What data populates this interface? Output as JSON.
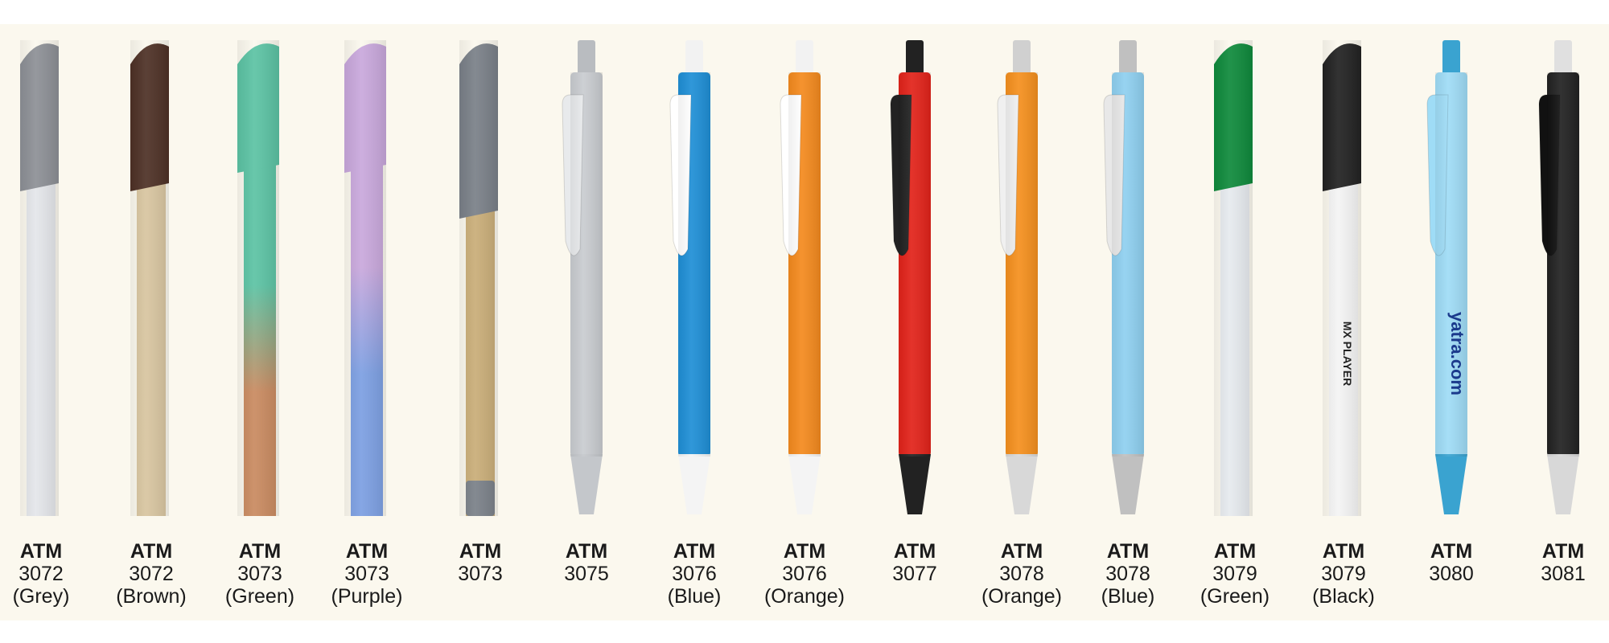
{
  "items": [
    {
      "brand": "ATM",
      "code": "3072",
      "variant": "(Grey)"
    },
    {
      "brand": "ATM",
      "code": "3072",
      "variant": "(Brown)"
    },
    {
      "brand": "ATM",
      "code": "3073",
      "variant": "(Green)"
    },
    {
      "brand": "ATM",
      "code": "3073",
      "variant": "(Purple)"
    },
    {
      "brand": "ATM",
      "code": "3073"
    },
    {
      "brand": "ATM",
      "code": "3075"
    },
    {
      "brand": "ATM",
      "code": "3076",
      "variant": "(Blue)"
    },
    {
      "brand": "ATM",
      "code": "3076",
      "variant": "(Orange)"
    },
    {
      "brand": "ATM",
      "code": "3077"
    },
    {
      "brand": "ATM",
      "code": "3078",
      "variant": "(Orange)"
    },
    {
      "brand": "ATM",
      "code": "3078",
      "variant": "(Blue)"
    },
    {
      "brand": "ATM",
      "code": "3079",
      "variant": "(Green)"
    },
    {
      "brand": "ATM",
      "code": "3079",
      "variant": "(Black)",
      "logo": "MX PLAYER"
    },
    {
      "brand": "ATM",
      "code": "3080",
      "logo": "yatra.com"
    },
    {
      "brand": "ATM",
      "code": "3081"
    }
  ]
}
